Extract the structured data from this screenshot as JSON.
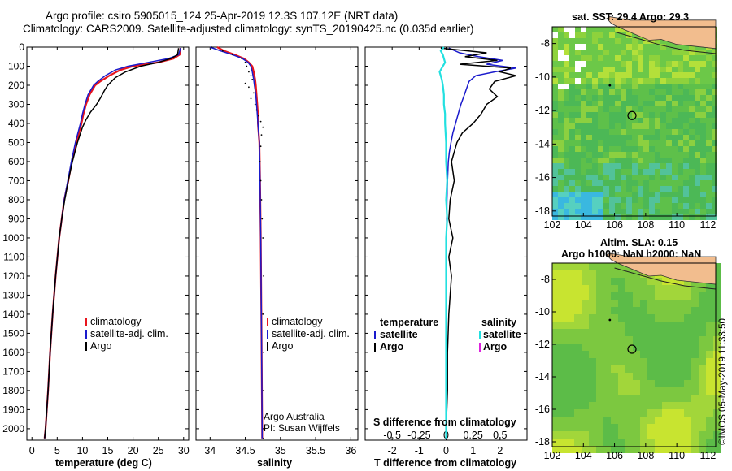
{
  "header": {
    "line1": "Argo profile: csiro 5905015_124 25-Apr-2019 12.3S 107.12E (NRT data)",
    "line2": "Climatology: CARS2009. Satellite-adjusted climatology: synTS_20190425.nc (0.035d earlier)"
  },
  "colors": {
    "climatology": "#e8141c",
    "satellite": "#1a1acc",
    "argo": "#000000",
    "sat_salinity": "#22e0e0",
    "argo_salinity": "#dd22dd",
    "land": "#f2bd8e"
  },
  "depth_axis": {
    "ticks": [
      0,
      100,
      200,
      300,
      400,
      500,
      600,
      700,
      800,
      900,
      1000,
      1100,
      1200,
      1300,
      1400,
      1500,
      1600,
      1700,
      1800,
      1900,
      2000
    ],
    "range": [
      0,
      2060
    ],
    "inverted": true
  },
  "chart_data": [
    {
      "type": "line",
      "id": "temperature",
      "xlabel": "temperature (deg C)",
      "ylabel": "",
      "xlim": [
        -1,
        31
      ],
      "xticks": [
        0,
        5,
        10,
        15,
        20,
        25,
        30
      ],
      "legend": {
        "placement": "bottom-left",
        "entries": [
          "climatology",
          "satellite-adj. clim.",
          "Argo"
        ]
      },
      "series": [
        {
          "name": "climatology",
          "depth": [
            5,
            40,
            60,
            80,
            100,
            120,
            150,
            180,
            200,
            250,
            300,
            350,
            400,
            500,
            600,
            700,
            800,
            900,
            1000,
            1200,
            1400,
            1600,
            1800,
            2000,
            2050
          ],
          "values": [
            29.4,
            29.2,
            28,
            25,
            20,
            17.5,
            15.3,
            13.5,
            12.5,
            11.4,
            10.7,
            10.2,
            9.8,
            8.8,
            7.9,
            7.2,
            6.4,
            5.9,
            5.4,
            4.7,
            4.1,
            3.6,
            3.2,
            2.7,
            2.5
          ]
        },
        {
          "name": "satellite-adj. clim.",
          "depth": [
            5,
            40,
            60,
            80,
            100,
            120,
            150,
            180,
            200,
            250,
            300,
            350,
            400,
            500,
            600,
            700,
            800,
            900,
            1000,
            1200,
            1400,
            1600,
            1800,
            2000,
            2050
          ],
          "values": [
            29.4,
            29.0,
            27,
            23,
            19,
            16.5,
            14.5,
            13.0,
            12.2,
            11.1,
            10.5,
            10.0,
            9.6,
            8.6,
            7.8,
            7.1,
            6.4,
            5.9,
            5.4,
            4.7,
            4.1,
            3.6,
            3.2,
            2.7,
            2.5
          ]
        },
        {
          "name": "Argo",
          "depth": [
            5,
            40,
            60,
            80,
            100,
            130,
            160,
            200,
            230,
            260,
            300,
            340,
            380,
            420,
            460,
            500,
            600,
            700,
            800,
            900,
            1000,
            1200,
            1400,
            1600,
            1800,
            2000,
            2050
          ],
          "values": [
            29.0,
            28.8,
            27.5,
            25,
            21.5,
            18.5,
            16.5,
            15.0,
            14.3,
            13.7,
            12.8,
            11.6,
            10.7,
            10.0,
            9.5,
            9.0,
            8.0,
            7.2,
            6.5,
            5.9,
            5.4,
            4.7,
            4.1,
            3.6,
            3.2,
            2.7,
            2.5
          ]
        }
      ]
    },
    {
      "type": "line",
      "id": "salinity",
      "xlabel": "salinity",
      "ylabel": "",
      "xlim": [
        33.8,
        36.1
      ],
      "xticks": [
        34,
        34.5,
        35,
        35.5,
        36
      ],
      "xtick_labels": [
        "34",
        "34.5",
        "35",
        "35.5",
        "36"
      ],
      "legend": {
        "placement": "bottom-right",
        "entries": [
          "climatology",
          "satellite-adj. clim.",
          "Argo"
        ]
      },
      "credits": [
        "Argo Australia",
        "PI: Susan Wijffels"
      ],
      "series": [
        {
          "name": "climatology",
          "depth": [
            0,
            20,
            40,
            60,
            80,
            100,
            130,
            170,
            200,
            250,
            300,
            350,
            400,
            500,
            700,
            1000,
            1500,
            2000,
            2050
          ],
          "values": [
            34.1,
            34.2,
            34.35,
            34.48,
            34.55,
            34.6,
            34.62,
            34.64,
            34.65,
            34.66,
            34.67,
            34.68,
            34.68,
            34.7,
            34.71,
            34.72,
            34.73,
            34.74,
            34.74
          ]
        },
        {
          "name": "satellite-adj. clim.",
          "depth": [
            0,
            20,
            40,
            60,
            80,
            100,
            130,
            170,
            200,
            250,
            300,
            350,
            400,
            500,
            700,
            1000,
            1500,
            2000,
            2050
          ],
          "values": [
            34.0,
            34.15,
            34.32,
            34.46,
            34.54,
            34.58,
            34.6,
            34.62,
            34.63,
            34.65,
            34.66,
            34.67,
            34.68,
            34.7,
            34.71,
            34.72,
            34.73,
            34.74,
            34.74
          ]
        },
        {
          "name": "Argo",
          "depth": [
            0,
            20,
            40,
            60,
            80,
            100,
            130,
            150,
            170,
            190,
            210,
            240,
            270,
            300,
            330,
            360,
            390,
            420,
            460,
            520,
            600,
            700,
            800,
            900,
            1000,
            1200,
            1400,
            1600,
            1800,
            2000,
            2050
          ],
          "values": [
            34.02,
            34.18,
            34.32,
            34.45,
            34.5,
            34.52,
            34.55,
            34.58,
            34.6,
            34.5,
            34.55,
            34.62,
            34.58,
            34.64,
            34.66,
            34.69,
            34.72,
            34.75,
            34.73,
            34.72,
            34.71,
            34.72,
            34.73,
            34.74,
            34.75,
            34.76,
            34.75,
            34.76,
            34.76,
            34.76,
            34.76
          ]
        }
      ]
    },
    {
      "type": "line",
      "id": "differences",
      "xlabel": "T difference from climatology",
      "x2label": "S difference from climatology",
      "xlim": [
        -3,
        3
      ],
      "xticks": [
        -2,
        -1,
        0,
        1,
        2
      ],
      "s_xlim": [
        -0.75,
        0.75
      ],
      "s_xticks": [
        -0.5,
        -0.25,
        0,
        0.25,
        0.5
      ],
      "s_xtick_labels": [
        "-0.5",
        "-0.25",
        "0",
        "0.25",
        "0.5"
      ],
      "legend": {
        "placement": "bottom",
        "temperature_title": "temperature",
        "salinity_title": "salinity",
        "temperature_entries": [
          "satellite",
          "Argo"
        ],
        "salinity_entries": [
          "satellite",
          "Argo"
        ]
      },
      "series": [
        {
          "name": "satellite",
          "quantity": "T",
          "depth": [
            5,
            30,
            50,
            70,
            90,
            110,
            130,
            150,
            180,
            220,
            260,
            300,
            350,
            400,
            450,
            500,
            550,
            600,
            700,
            800,
            900,
            1000,
            1200,
            1400,
            1600,
            1800,
            2000,
            2050
          ],
          "values": [
            0.1,
            0.5,
            1.2,
            2.1,
            1.5,
            2.6,
            1.8,
            1.1,
            0.85,
            0.75,
            0.65,
            0.55,
            0.45,
            0.35,
            0.25,
            0.18,
            0.12,
            0.08,
            0.05,
            0.03,
            0.02,
            0.02,
            0.01,
            0.01,
            0.01,
            0,
            0,
            0
          ]
        },
        {
          "name": "Argo",
          "quantity": "T",
          "depth": [
            5,
            30,
            50,
            70,
            90,
            110,
            130,
            150,
            180,
            220,
            260,
            300,
            350,
            400,
            450,
            500,
            600,
            700,
            800,
            900,
            1000,
            1100,
            1200,
            1400,
            1600,
            1800,
            2000,
            2050
          ],
          "values": [
            -0.2,
            1.5,
            0.7,
            1.9,
            0.5,
            2.4,
            2.0,
            2.6,
            1.8,
            1.6,
            1.9,
            1.5,
            1.3,
            1.0,
            0.6,
            0.4,
            0.2,
            0.3,
            0.15,
            0.1,
            0.25,
            0.1,
            0.2,
            0.1,
            0.05,
            0.05,
            0,
            0
          ]
        },
        {
          "name": "satellite",
          "quantity": "S",
          "depth": [
            0,
            20,
            40,
            60,
            80,
            100,
            130,
            170,
            200,
            250,
            300,
            350,
            400,
            500,
            600,
            700,
            800,
            900,
            1000,
            1200,
            1400,
            1600,
            1800,
            2000,
            2050
          ],
          "values": [
            -0.02,
            -0.05,
            -0.03,
            -0.02,
            -0.01,
            -0.03,
            -0.06,
            -0.04,
            -0.03,
            -0.02,
            -0.02,
            -0.01,
            -0.01,
            0,
            0,
            0.01,
            0,
            0.01,
            0,
            0,
            0,
            0,
            0,
            0,
            0
          ]
        },
        {
          "name": "Argo",
          "quantity": "S",
          "depth": [],
          "values": []
        }
      ]
    },
    {
      "type": "heatmap",
      "id": "sst_map",
      "title": "sat. SST: 29.4 Argo: 29.3",
      "xlim": [
        102,
        112.5
      ],
      "ylim": [
        -18.3,
        -7
      ],
      "xticks": [
        102,
        104,
        106,
        108,
        110,
        112
      ],
      "yticks": [
        -8,
        -10,
        -12,
        -14,
        -16,
        -18
      ],
      "profile": {
        "lon": 107.12,
        "lat": -12.3
      },
      "marker": {
        "lon": 105.7,
        "lat": -10.5
      }
    },
    {
      "type": "heatmap",
      "id": "sla_map",
      "title": "Altim. SLA: 0.15",
      "subtitle": "Argo h1000: NaN h2000: NaN",
      "xlim": [
        102,
        112.5
      ],
      "ylim": [
        -18.3,
        -7
      ],
      "xticks": [
        102,
        104,
        106,
        108,
        110,
        112
      ],
      "yticks": [
        -8,
        -10,
        -12,
        -14,
        -16,
        -18
      ],
      "profile": {
        "lon": 107.12,
        "lat": -12.3
      },
      "marker": {
        "lon": 105.7,
        "lat": -10.5
      }
    }
  ],
  "footer": {
    "stamp": "©IMOS 05-May-2019 11:33:50"
  }
}
